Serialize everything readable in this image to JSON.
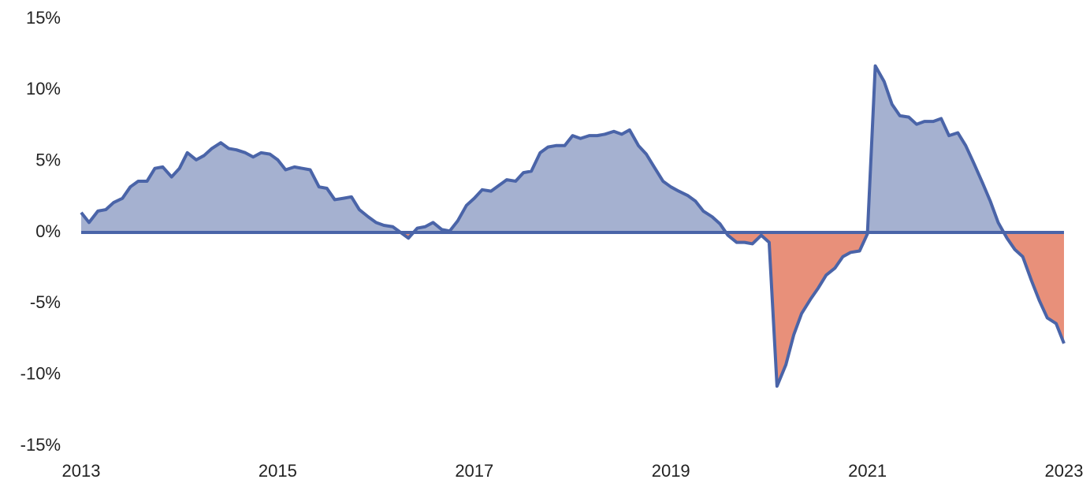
{
  "chart_data": {
    "type": "area",
    "x": [
      2013,
      2013.08,
      2013.17,
      2013.25,
      2013.33,
      2013.42,
      2013.5,
      2013.58,
      2013.67,
      2013.75,
      2013.83,
      2013.92,
      2014,
      2014.08,
      2014.17,
      2014.25,
      2014.33,
      2014.42,
      2014.5,
      2014.58,
      2014.67,
      2014.75,
      2014.83,
      2014.92,
      2015,
      2015.08,
      2015.17,
      2015.25,
      2015.33,
      2015.42,
      2015.5,
      2015.58,
      2015.67,
      2015.75,
      2015.83,
      2015.92,
      2016,
      2016.08,
      2016.17,
      2016.25,
      2016.33,
      2016.42,
      2016.5,
      2016.58,
      2016.67,
      2016.75,
      2016.83,
      2016.92,
      2017,
      2017.08,
      2017.17,
      2017.25,
      2017.33,
      2017.42,
      2017.5,
      2017.58,
      2017.67,
      2017.75,
      2017.83,
      2017.92,
      2018,
      2018.08,
      2018.17,
      2018.25,
      2018.33,
      2018.42,
      2018.5,
      2018.58,
      2018.67,
      2018.75,
      2018.83,
      2018.92,
      2019,
      2019.08,
      2019.17,
      2019.25,
      2019.33,
      2019.42,
      2019.5,
      2019.58,
      2019.67,
      2019.75,
      2019.83,
      2019.92,
      2020,
      2020.08,
      2020.17,
      2020.25,
      2020.33,
      2020.42,
      2020.5,
      2020.58,
      2020.67,
      2020.75,
      2020.83,
      2020.92,
      2021,
      2021.08,
      2021.17,
      2021.25,
      2021.33,
      2021.42,
      2021.5,
      2021.58,
      2021.67,
      2021.75,
      2021.83,
      2021.92,
      2022,
      2022.08,
      2022.17,
      2022.25,
      2022.33,
      2022.42,
      2022.5,
      2022.58,
      2022.67,
      2022.75,
      2022.83,
      2022.92,
      2023
    ],
    "values": [
      1.4,
      0.7,
      1.5,
      1.6,
      2.1,
      2.4,
      3.2,
      3.6,
      3.6,
      4.5,
      4.6,
      3.9,
      4.5,
      5.6,
      5.1,
      5.4,
      5.9,
      6.3,
      5.9,
      5.8,
      5.6,
      5.3,
      5.6,
      5.5,
      5.1,
      4.4,
      4.6,
      4.5,
      4.4,
      3.2,
      3.1,
      2.3,
      2.4,
      2.5,
      1.6,
      1.1,
      0.7,
      0.5,
      0.4,
      0,
      -0.4,
      0.3,
      0.4,
      0.7,
      0.2,
      0.1,
      0.8,
      1.9,
      2.4,
      3.0,
      2.9,
      3.3,
      3.7,
      3.6,
      4.2,
      4.3,
      5.6,
      6.0,
      6.1,
      6.1,
      6.8,
      6.6,
      6.8,
      6.8,
      6.9,
      7.1,
      6.9,
      7.2,
      6.1,
      5.5,
      4.6,
      3.6,
      3.2,
      2.9,
      2.6,
      2.2,
      1.5,
      1.1,
      0.6,
      -0.2,
      -0.7,
      -0.7,
      -0.8,
      -0.2,
      -0.7,
      -10.8,
      -9.3,
      -7.2,
      -5.7,
      -4.7,
      -3.9,
      -3.0,
      -2.5,
      -1.7,
      -1.4,
      -1.3,
      -0.1,
      11.7,
      10.6,
      9.0,
      8.2,
      8.1,
      7.6,
      7.8,
      7.8,
      8.0,
      6.8,
      7.0,
      6.1,
      4.9,
      3.5,
      2.2,
      0.7,
      -0.4,
      -1.2,
      -1.7,
      -3.4,
      -4.8,
      -6.0,
      -6.4,
      -7.8
    ],
    "color": "#4a64a8",
    "positive_fill": "#a5b1d0",
    "negative_fill": "#e8907a",
    "xlim": [
      2013,
      2023
    ],
    "xticks": [
      2013,
      2015,
      2017,
      2019,
      2021,
      2023
    ],
    "ylim": [
      -15,
      15
    ],
    "yticks": [
      {
        "value": -15,
        "label": "-15%"
      },
      {
        "value": -10,
        "label": "-10%"
      },
      {
        "value": -5,
        "label": "-5%"
      },
      {
        "value": 0,
        "label": "0%"
      },
      {
        "value": 5,
        "label": "5%"
      },
      {
        "value": 10,
        "label": "10%"
      },
      {
        "value": 15,
        "label": "15%"
      }
    ]
  }
}
